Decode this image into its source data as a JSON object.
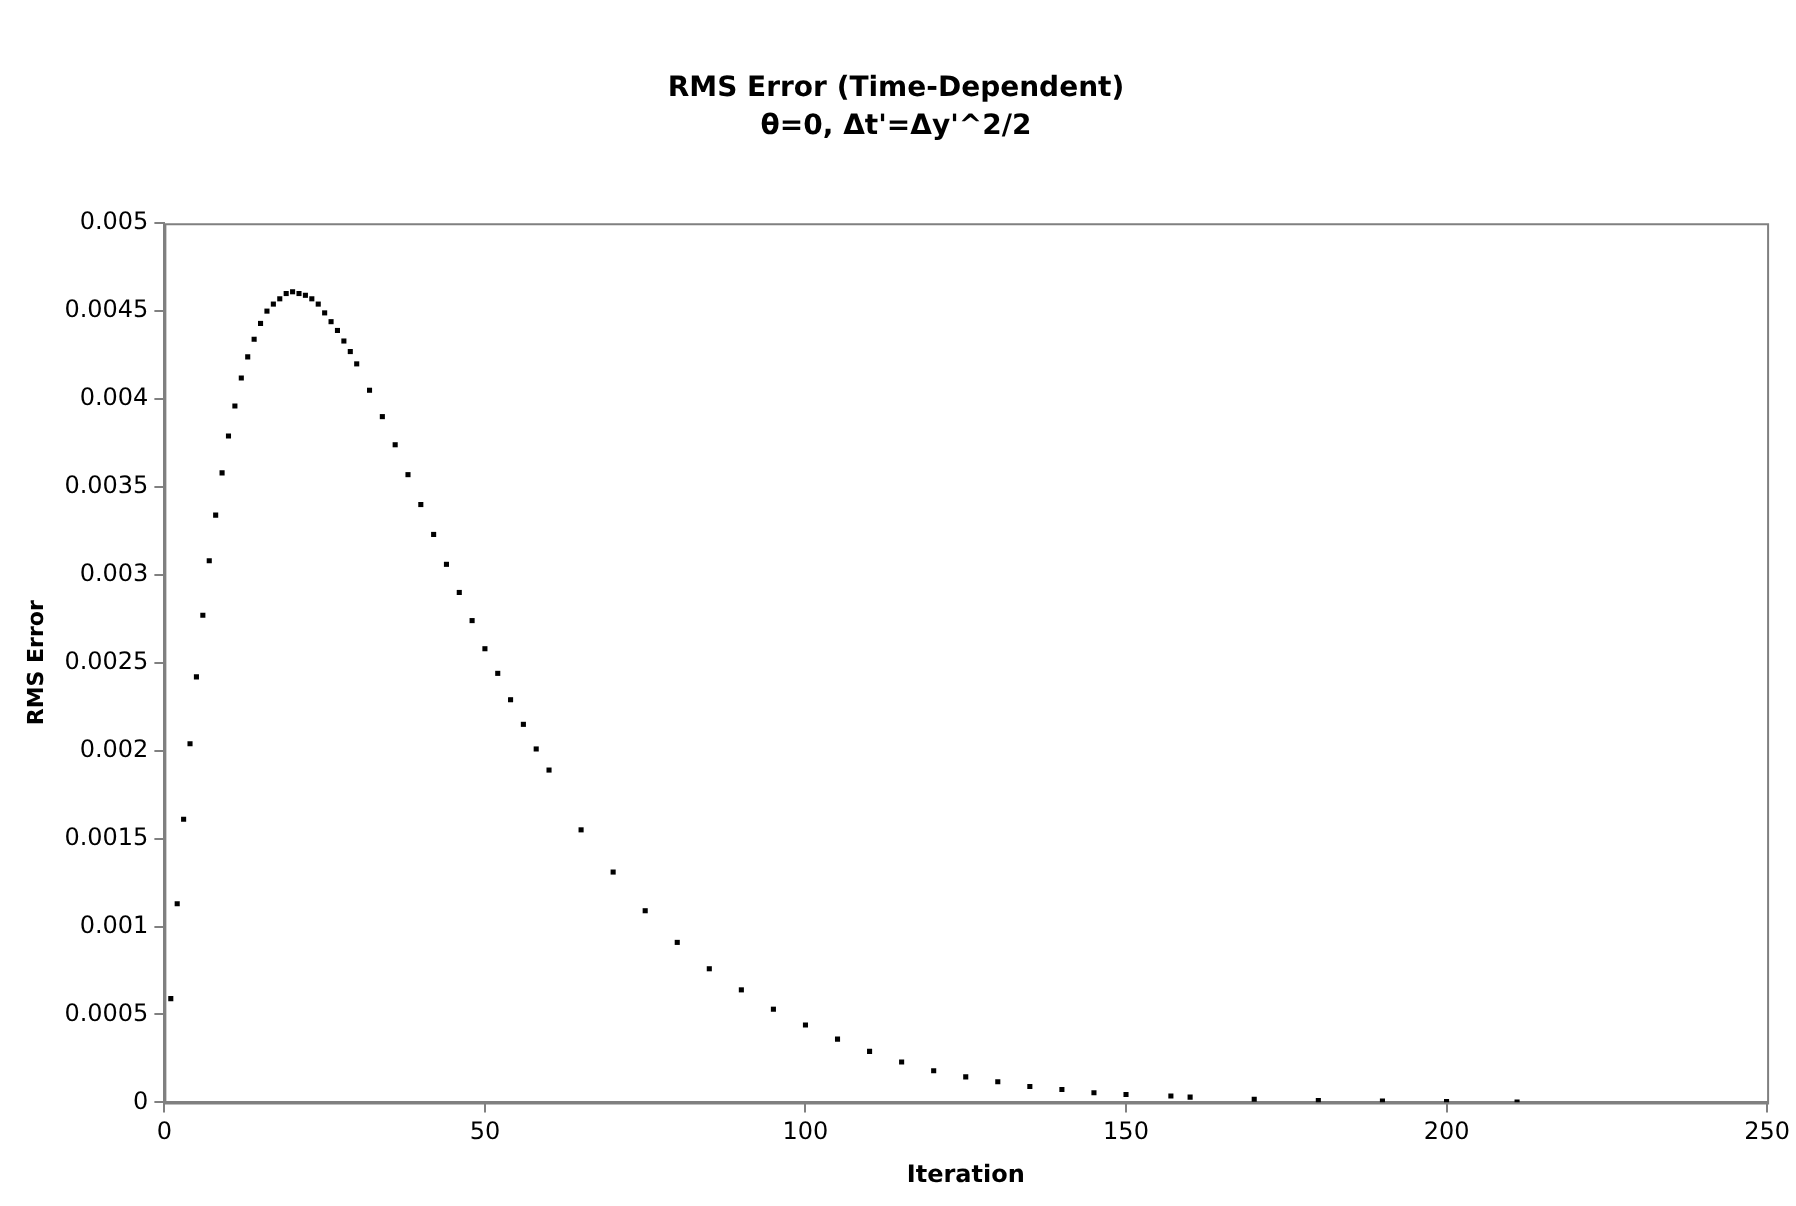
{
  "chart_data": {
    "type": "scatter",
    "title": "RMS Error (Time-Dependent)",
    "subtitle": "θ=0, Δt'=Δy'^2/2",
    "xlabel": "Iteration",
    "ylabel": "RMS Error",
    "x": [
      1,
      2,
      3,
      4,
      5,
      6,
      7,
      8,
      9,
      10,
      11,
      12,
      13,
      14,
      15,
      16,
      17,
      18,
      19,
      20,
      21,
      22,
      23,
      24,
      25,
      26,
      27,
      28,
      29,
      30,
      32,
      34,
      36,
      38,
      40,
      42,
      44,
      46,
      48,
      50,
      52,
      54,
      56,
      58,
      60,
      65,
      70,
      75,
      80,
      85,
      90,
      95,
      100,
      105,
      110,
      115,
      120,
      125,
      130,
      135,
      140,
      145,
      150,
      157,
      160,
      170,
      180,
      190,
      200,
      211
    ],
    "series": [
      {
        "color": "#000000",
        "values": [
          0.00059,
          0.00113,
          0.00161,
          0.00204,
          0.00242,
          0.00277,
          0.00308,
          0.00334,
          0.00358,
          0.00379,
          0.00396,
          0.00412,
          0.00424,
          0.00434,
          0.00443,
          0.0045,
          0.00454,
          0.00457,
          0.0046,
          0.00461,
          0.0046,
          0.00459,
          0.00457,
          0.00454,
          0.00449,
          0.00444,
          0.00439,
          0.00433,
          0.00427,
          0.0042,
          0.00405,
          0.0039,
          0.00374,
          0.00357,
          0.0034,
          0.00323,
          0.00306,
          0.0029,
          0.00274,
          0.00258,
          0.00244,
          0.00229,
          0.00215,
          0.00201,
          0.00189,
          0.00155,
          0.00131,
          0.00109,
          0.00091,
          0.00076,
          0.00064,
          0.00053,
          0.00044,
          0.00036,
          0.00029,
          0.00023,
          0.00018,
          0.000145,
          0.000117,
          9e-05,
          7.3e-05,
          5.5e-05,
          4.5e-05,
          3.6e-05,
          3e-05,
          1.8e-05,
          1e-05,
          8e-06,
          5e-06,
          2e-06
        ]
      }
    ],
    "xlim": [
      0,
      250
    ],
    "xticks": [
      0,
      50,
      100,
      150,
      200,
      250
    ],
    "ylim": [
      0,
      0.005
    ],
    "yticks": [
      0,
      0.0005,
      0.001,
      0.0015,
      0.002,
      0.0025,
      0.003,
      0.0035,
      0.004,
      0.0045,
      0.005
    ],
    "grid": false,
    "legend": false,
    "marker": "square"
  }
}
